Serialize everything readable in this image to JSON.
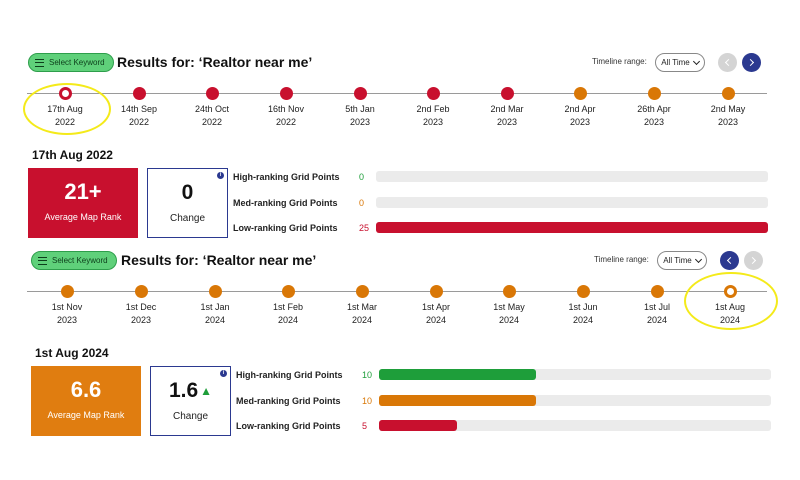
{
  "panels": [
    {
      "keyword_button": "Select Keyword",
      "results_title": "Results for: ‘Realtor near me’",
      "timeline_range_label": "Timeline range:",
      "timeline_range_value": "All Time",
      "prev_enabled": false,
      "next_enabled": true,
      "timeline": [
        {
          "date": "17th Aug",
          "year": "2022",
          "color": "red",
          "selected": true
        },
        {
          "date": "14th Sep",
          "year": "2022",
          "color": "red",
          "selected": false
        },
        {
          "date": "24th Oct",
          "year": "2022",
          "color": "red",
          "selected": false
        },
        {
          "date": "16th Nov",
          "year": "2022",
          "color": "red",
          "selected": false
        },
        {
          "date": "5th Jan",
          "year": "2023",
          "color": "red",
          "selected": false
        },
        {
          "date": "2nd Feb",
          "year": "2023",
          "color": "red",
          "selected": false
        },
        {
          "date": "2nd Mar",
          "year": "2023",
          "color": "red",
          "selected": false
        },
        {
          "date": "2nd Apr",
          "year": "2023",
          "color": "orange",
          "selected": false
        },
        {
          "date": "26th Apr",
          "year": "2023",
          "color": "orange",
          "selected": false
        },
        {
          "date": "2nd May",
          "year": "2023",
          "color": "orange",
          "selected": false
        }
      ],
      "selected_date": "17th Aug 2022",
      "average_map_rank": "21+",
      "average_map_rank_label": "Average Map Rank",
      "rank_color": "red",
      "change_value": "0",
      "change_label": "Change",
      "change_trend": "none",
      "grid": {
        "max": 25,
        "rows": [
          {
            "label": "High-ranking Grid Points",
            "count": 0,
            "color": "green"
          },
          {
            "label": "Med-ranking Grid Points",
            "count": 0,
            "color": "orange"
          },
          {
            "label": "Low-ranking Grid Points",
            "count": 25,
            "color": "red"
          }
        ]
      }
    },
    {
      "keyword_button": "Select Keyword",
      "results_title": "Results for: ‘Realtor near me’",
      "timeline_range_label": "Timeline range:",
      "timeline_range_value": "All Time",
      "prev_enabled": true,
      "next_enabled": false,
      "timeline": [
        {
          "date": "1st Nov",
          "year": "2023",
          "color": "orange",
          "selected": false
        },
        {
          "date": "1st Dec",
          "year": "2023",
          "color": "orange",
          "selected": false
        },
        {
          "date": "1st Jan",
          "year": "2024",
          "color": "orange",
          "selected": false
        },
        {
          "date": "1st Feb",
          "year": "2024",
          "color": "orange",
          "selected": false
        },
        {
          "date": "1st Mar",
          "year": "2024",
          "color": "orange",
          "selected": false
        },
        {
          "date": "1st Apr",
          "year": "2024",
          "color": "orange",
          "selected": false
        },
        {
          "date": "1st May",
          "year": "2024",
          "color": "orange",
          "selected": false
        },
        {
          "date": "1st Jun",
          "year": "2024",
          "color": "orange",
          "selected": false
        },
        {
          "date": "1st Jul",
          "year": "2024",
          "color": "orange",
          "selected": false
        },
        {
          "date": "1st Aug",
          "year": "2024",
          "color": "orange",
          "selected": true
        }
      ],
      "selected_date": "1st Aug 2024",
      "average_map_rank": "6.6",
      "average_map_rank_label": "Average Map Rank",
      "rank_color": "orange",
      "change_value": "1.6",
      "change_label": "Change",
      "change_trend": "up",
      "grid": {
        "max": 25,
        "rows": [
          {
            "label": "High-ranking Grid Points",
            "count": 10,
            "color": "green"
          },
          {
            "label": "Med-ranking Grid Points",
            "count": 10,
            "color": "orange"
          },
          {
            "label": "Low-ranking Grid Points",
            "count": 5,
            "color": "red"
          }
        ]
      }
    }
  ]
}
